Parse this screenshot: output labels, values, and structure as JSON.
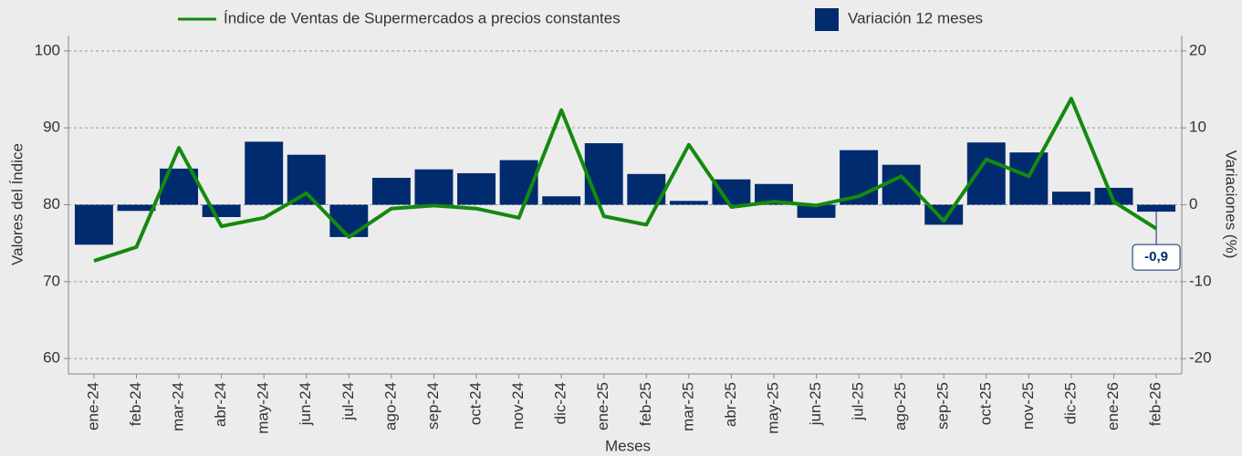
{
  "chart_data": {
    "type": "bar-line",
    "x_label": "Meses",
    "y_label": "Valores del Índice",
    "y2_label": "Variaciones (%)",
    "categories": [
      "ene-24",
      "feb-24",
      "mar-24",
      "abr-24",
      "may-24",
      "jun-24",
      "jul-24",
      "ago-24",
      "sep-24",
      "oct-24",
      "nov-24",
      "dic-24",
      "ene-25",
      "feb-25",
      "mar-25",
      "abr-25",
      "may-25",
      "jun-25",
      "jul-25",
      "ago-25",
      "sep-25",
      "oct-25",
      "nov-25",
      "dic-25",
      "ene-26",
      "feb-26"
    ],
    "series": [
      {
        "name": "Índice de Ventas de Supermercados a precios constantes",
        "type": "line",
        "color": "#138a0e",
        "axis": "y",
        "values": [
          72.7,
          74.5,
          87.4,
          77.2,
          78.3,
          81.5,
          75.8,
          79.5,
          79.9,
          79.5,
          78.3,
          92.3,
          78.5,
          77.4,
          87.8,
          79.7,
          80.4,
          79.9,
          81.1,
          83.7,
          77.9,
          85.9,
          83.7,
          93.8,
          80.4,
          76.9
        ]
      },
      {
        "name": "Variación 12 meses",
        "type": "bar",
        "color": "#002b6e",
        "axis": "y2",
        "values": [
          -5.2,
          -0.8,
          4.7,
          -1.6,
          8.2,
          6.5,
          -4.2,
          3.5,
          4.6,
          4.1,
          5.8,
          1.1,
          8.0,
          4.0,
          0.5,
          3.3,
          2.7,
          -1.7,
          7.1,
          5.2,
          -2.6,
          8.1,
          6.8,
          1.7,
          2.2,
          -0.9
        ],
        "value_labels": [
          null,
          null,
          null,
          null,
          null,
          null,
          null,
          null,
          null,
          null,
          null,
          null,
          null,
          null,
          null,
          null,
          null,
          null,
          null,
          null,
          null,
          null,
          null,
          null,
          null,
          "-0,9"
        ]
      }
    ],
    "ylim": [
      58,
      102
    ],
    "yticks": [
      60,
      70,
      80,
      90,
      100
    ],
    "y2lim": [
      -22,
      22
    ],
    "y2ticks": [
      -20,
      -10,
      0,
      10,
      20
    ],
    "grid": true,
    "legend": "top"
  }
}
